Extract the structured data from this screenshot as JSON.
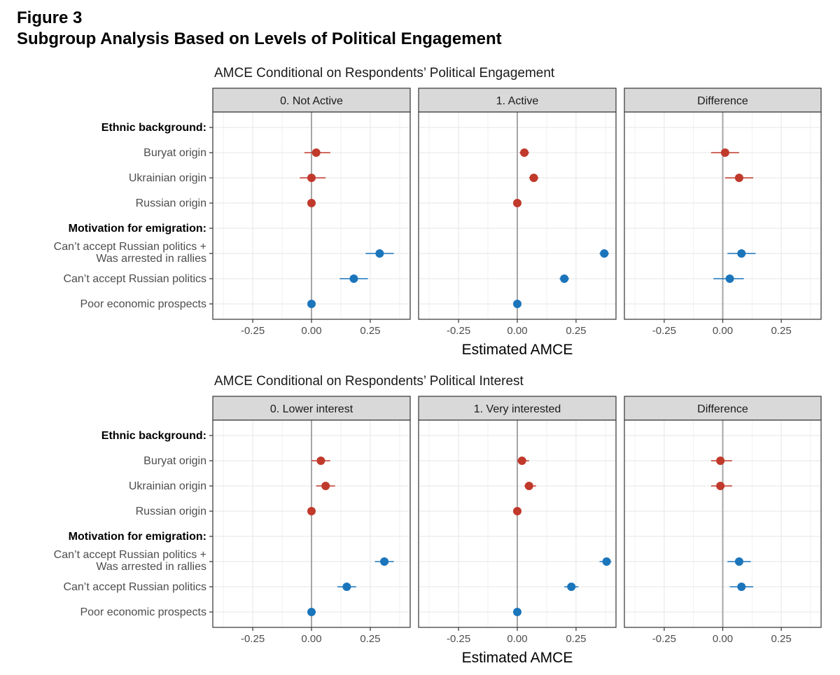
{
  "figure": {
    "label": "Figure 3",
    "title": "Subgroup Analysis Based on Levels of Political Engagement"
  },
  "colors": {
    "ethnic": "#c0392b",
    "motivation": "#1b75bb",
    "strip_fill": "#d9d9d9",
    "grid": "#ebebeb",
    "zero_line": "#a6a6a6"
  },
  "chart_data": [
    {
      "type": "scatter",
      "title": "AMCE Conditional on Respondents’ Political Engagement",
      "xlabel": "Estimated AMCE",
      "ylabel": "",
      "xlim": [
        -0.42,
        0.42
      ],
      "xticks": [
        -0.25,
        0.0,
        0.25
      ],
      "xtick_labels": [
        "-0.25",
        "0.00",
        "0.25"
      ],
      "grid": true,
      "rows": [
        {
          "label": "Ethnic background:",
          "header": true,
          "group": "ethnic"
        },
        {
          "label": "Buryat origin",
          "group": "ethnic"
        },
        {
          "label": "Ukrainian origin",
          "group": "ethnic"
        },
        {
          "label": "Russian origin",
          "group": "ethnic"
        },
        {
          "label": "Motivation for emigration:",
          "header": true,
          "group": "motivation"
        },
        {
          "label": "Can’t accept Russian politics +\nWas arrested in rallies",
          "group": "motivation"
        },
        {
          "label": "Can’t accept Russian politics",
          "group": "motivation"
        },
        {
          "label": "Poor economic prospects",
          "group": "motivation"
        }
      ],
      "panels": [
        {
          "name": "0. Not Active",
          "points": [
            {
              "row": 1,
              "est": 0.02,
              "lo": -0.03,
              "hi": 0.08
            },
            {
              "row": 2,
              "est": 0.0,
              "lo": -0.05,
              "hi": 0.06
            },
            {
              "row": 3,
              "est": 0.0,
              "lo": 0.0,
              "hi": 0.0
            },
            {
              "row": 5,
              "est": 0.29,
              "lo": 0.23,
              "hi": 0.35
            },
            {
              "row": 6,
              "est": 0.18,
              "lo": 0.12,
              "hi": 0.24
            },
            {
              "row": 7,
              "est": 0.0,
              "lo": 0.0,
              "hi": 0.0
            }
          ]
        },
        {
          "name": "1. Active",
          "points": [
            {
              "row": 1,
              "est": 0.03,
              "lo": 0.01,
              "hi": 0.05
            },
            {
              "row": 2,
              "est": 0.07,
              "lo": 0.05,
              "hi": 0.09
            },
            {
              "row": 3,
              "est": 0.0,
              "lo": 0.0,
              "hi": 0.0
            },
            {
              "row": 5,
              "est": 0.37,
              "lo": 0.35,
              "hi": 0.39
            },
            {
              "row": 6,
              "est": 0.2,
              "lo": 0.18,
              "hi": 0.22
            },
            {
              "row": 7,
              "est": 0.0,
              "lo": 0.0,
              "hi": 0.0
            }
          ]
        },
        {
          "name": "Difference",
          "points": [
            {
              "row": 1,
              "est": 0.01,
              "lo": -0.05,
              "hi": 0.07
            },
            {
              "row": 2,
              "est": 0.07,
              "lo": 0.01,
              "hi": 0.13
            },
            {
              "row": 5,
              "est": 0.08,
              "lo": 0.02,
              "hi": 0.14
            },
            {
              "row": 6,
              "est": 0.03,
              "lo": -0.04,
              "hi": 0.09
            }
          ]
        }
      ]
    },
    {
      "type": "scatter",
      "title": "AMCE Conditional on Respondents’ Political Interest",
      "xlabel": "Estimated AMCE",
      "ylabel": "",
      "xlim": [
        -0.42,
        0.42
      ],
      "xticks": [
        -0.25,
        0.0,
        0.25
      ],
      "xtick_labels": [
        "-0.25",
        "0.00",
        "0.25"
      ],
      "grid": true,
      "rows": [
        {
          "label": "Ethnic background:",
          "header": true,
          "group": "ethnic"
        },
        {
          "label": "Buryat origin",
          "group": "ethnic"
        },
        {
          "label": "Ukrainian origin",
          "group": "ethnic"
        },
        {
          "label": "Russian origin",
          "group": "ethnic"
        },
        {
          "label": "Motivation for emigration:",
          "header": true,
          "group": "motivation"
        },
        {
          "label": "Can’t accept Russian politics +\nWas arrested in rallies",
          "group": "motivation"
        },
        {
          "label": "Can’t accept Russian politics",
          "group": "motivation"
        },
        {
          "label": "Poor economic prospects",
          "group": "motivation"
        }
      ],
      "panels": [
        {
          "name": "0. Lower interest",
          "points": [
            {
              "row": 1,
              "est": 0.04,
              "lo": 0.0,
              "hi": 0.08
            },
            {
              "row": 2,
              "est": 0.06,
              "lo": 0.02,
              "hi": 0.1
            },
            {
              "row": 3,
              "est": 0.0,
              "lo": 0.0,
              "hi": 0.0
            },
            {
              "row": 5,
              "est": 0.31,
              "lo": 0.27,
              "hi": 0.35
            },
            {
              "row": 6,
              "est": 0.15,
              "lo": 0.11,
              "hi": 0.19
            },
            {
              "row": 7,
              "est": 0.0,
              "lo": 0.0,
              "hi": 0.0
            }
          ]
        },
        {
          "name": "1. Very interested",
          "points": [
            {
              "row": 1,
              "est": 0.02,
              "lo": 0.0,
              "hi": 0.05
            },
            {
              "row": 2,
              "est": 0.05,
              "lo": 0.03,
              "hi": 0.08
            },
            {
              "row": 3,
              "est": 0.0,
              "lo": 0.0,
              "hi": 0.0
            },
            {
              "row": 5,
              "est": 0.38,
              "lo": 0.35,
              "hi": 0.4
            },
            {
              "row": 6,
              "est": 0.23,
              "lo": 0.2,
              "hi": 0.26
            },
            {
              "row": 7,
              "est": 0.0,
              "lo": 0.0,
              "hi": 0.0
            }
          ]
        },
        {
          "name": "Difference",
          "points": [
            {
              "row": 1,
              "est": -0.01,
              "lo": -0.05,
              "hi": 0.04
            },
            {
              "row": 2,
              "est": -0.01,
              "lo": -0.05,
              "hi": 0.04
            },
            {
              "row": 5,
              "est": 0.07,
              "lo": 0.02,
              "hi": 0.12
            },
            {
              "row": 6,
              "est": 0.08,
              "lo": 0.03,
              "hi": 0.13
            }
          ]
        }
      ]
    }
  ]
}
